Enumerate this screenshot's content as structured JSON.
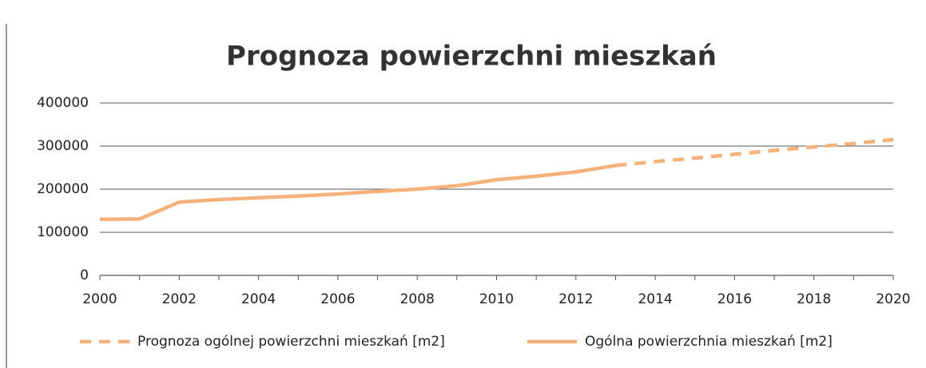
{
  "chart_data": {
    "type": "line",
    "title": "Prognoza powierzchni mieszkań",
    "x": [
      2000,
      2001,
      2002,
      2003,
      2004,
      2005,
      2006,
      2007,
      2008,
      2009,
      2010,
      2011,
      2012,
      2013,
      2014,
      2015,
      2016,
      2017,
      2018,
      2019,
      2020
    ],
    "series": [
      {
        "name": "Prognoza ogólnej powierzchni mieszkań [m2]",
        "color": "#f4b27a",
        "dashed": true,
        "values": [
          null,
          null,
          null,
          null,
          null,
          null,
          null,
          null,
          null,
          null,
          null,
          null,
          null,
          255000,
          264000,
          272000,
          281000,
          290000,
          298000,
          306000,
          315000
        ]
      },
      {
        "name": "Ogólna powierzchnia mieszkań [m2]",
        "color": "#f4b27a",
        "dashed": false,
        "values": [
          130000,
          131000,
          170000,
          176000,
          180000,
          184000,
          189000,
          195000,
          200000,
          208000,
          222000,
          230000,
          240000,
          255000,
          null,
          null,
          null,
          null,
          null,
          null,
          null
        ]
      }
    ],
    "xlim": [
      2000,
      2020
    ],
    "xticks": [
      2000,
      2002,
      2004,
      2006,
      2008,
      2010,
      2012,
      2014,
      2016,
      2018,
      2020
    ],
    "ylim": [
      0,
      400000
    ],
    "yticks": [
      0,
      100000,
      200000,
      300000,
      400000
    ],
    "grid": true,
    "legend": "bottom"
  }
}
